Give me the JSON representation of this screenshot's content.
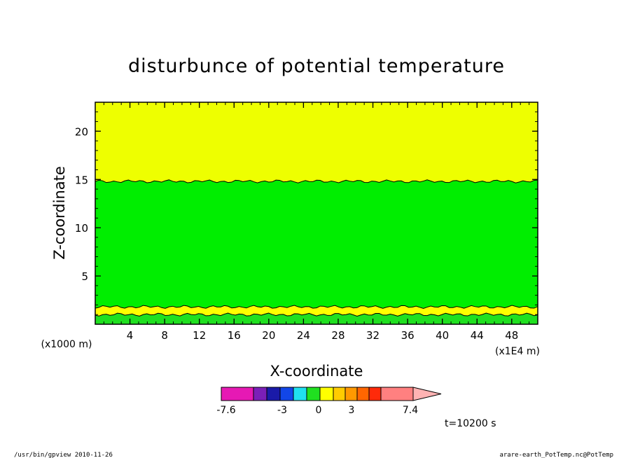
{
  "chart_data": {
    "type": "heatmap",
    "title": "disturbunce of potential temperature",
    "xlabel": "X-coordinate",
    "ylabel": "Z-coordinate",
    "x_unit": "(x1E4 m)",
    "y_unit": "(x1000 m)",
    "xlim": [
      0,
      51
    ],
    "ylim": [
      0,
      23
    ],
    "x_ticks": [
      4,
      8,
      12,
      16,
      20,
      24,
      28,
      32,
      36,
      40,
      44,
      48
    ],
    "y_ticks": [
      5,
      10,
      15,
      20
    ],
    "contour_levels": [
      0,
      1
    ],
    "bands": [
      {
        "z_from": 0.0,
        "z_to": 1.0,
        "color": "#20e020",
        "level": "0 to 1"
      },
      {
        "z_from": 1.0,
        "z_to": 1.8,
        "color": "#ffff00",
        "level": "1 to 2"
      },
      {
        "z_from": 1.8,
        "z_to": 14.8,
        "color": "#00ee00",
        "level": "0 to 1"
      },
      {
        "z_from": 14.8,
        "z_to": 23.0,
        "color": "#eeff00",
        "level": "1 to 2"
      }
    ],
    "colorbar": {
      "colors": [
        "#e619b4",
        "#7b1fb8",
        "#1a1aa8",
        "#1246e8",
        "#20e0f0",
        "#20e020",
        "#ffff00",
        "#ffcc00",
        "#ff9900",
        "#ff6600",
        "#ff2a0a",
        "#ff8080"
      ],
      "tick_labels": [
        "-7.6",
        "-3",
        "0",
        "3",
        "7.4"
      ],
      "extend": "max"
    },
    "time_label": "t=10200 s",
    "footer_left": "/usr/bin/gpview   2010-11-26",
    "footer_right": "arare-earth_PotTemp.nc@PotTemp"
  }
}
